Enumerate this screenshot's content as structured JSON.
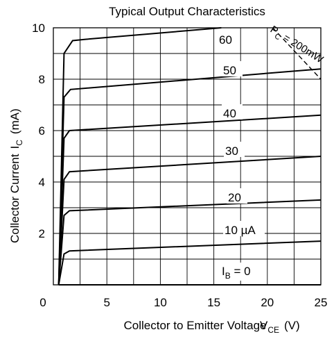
{
  "chart_data": {
    "type": "line",
    "title": "Typical Output Characteristics",
    "xlabel": "Collector to Emitter Voltage",
    "xlabel_sub": "CE",
    "xlabel_unit": "(V)",
    "ylabel": "Collector Current",
    "ylabel_sub": "C",
    "ylabel_unit": "(mA)",
    "xlim": [
      0,
      25
    ],
    "ylim": [
      0,
      10
    ],
    "x_ticks": [
      "0",
      "5",
      "10",
      "15",
      "20",
      "25"
    ],
    "y_ticks": [
      "2",
      "4",
      "6",
      "8",
      "10"
    ],
    "grid": true,
    "series": [
      {
        "name": "IB = 0",
        "points": [
          [
            0.5,
            0
          ],
          [
            25,
            0
          ]
        ]
      },
      {
        "name": "10 µA",
        "points": [
          [
            0.5,
            0
          ],
          [
            1.0,
            1.2
          ],
          [
            1.5,
            1.32
          ],
          [
            25,
            1.7
          ]
        ]
      },
      {
        "name": "20",
        "points": [
          [
            0.5,
            0
          ],
          [
            1.0,
            2.7
          ],
          [
            1.5,
            2.88
          ],
          [
            25,
            3.3
          ]
        ]
      },
      {
        "name": "30",
        "points": [
          [
            0.5,
            0
          ],
          [
            1.0,
            4.1
          ],
          [
            1.5,
            4.4
          ],
          [
            25,
            5.0
          ]
        ]
      },
      {
        "name": "40",
        "points": [
          [
            0.5,
            0
          ],
          [
            1.0,
            5.7
          ],
          [
            1.5,
            6.0
          ],
          [
            25,
            6.6
          ]
        ]
      },
      {
        "name": "50",
        "points": [
          [
            0.5,
            0
          ],
          [
            1.0,
            7.3
          ],
          [
            1.6,
            7.6
          ],
          [
            25,
            8.4
          ]
        ]
      },
      {
        "name": "60",
        "points": [
          [
            0.5,
            0
          ],
          [
            1.0,
            9.0
          ],
          [
            1.8,
            9.5
          ],
          [
            3.0,
            9.55
          ],
          [
            15.7,
            10.0
          ]
        ]
      }
    ],
    "power_limit": {
      "label": "PC = 200mW",
      "points": [
        [
          20.5,
          10
        ],
        [
          25,
          8.0
        ]
      ]
    },
    "curve_labels": {
      "ib0": {
        "main": "I",
        "sub": "B",
        "rest": " = 0"
      },
      "c10": "10 µA",
      "c20": "20",
      "c30": "30",
      "c40": "40",
      "c50": "50",
      "c60": "60",
      "pc": {
        "main": "P",
        "sub": "C",
        "rest": " = 200mW"
      }
    }
  }
}
